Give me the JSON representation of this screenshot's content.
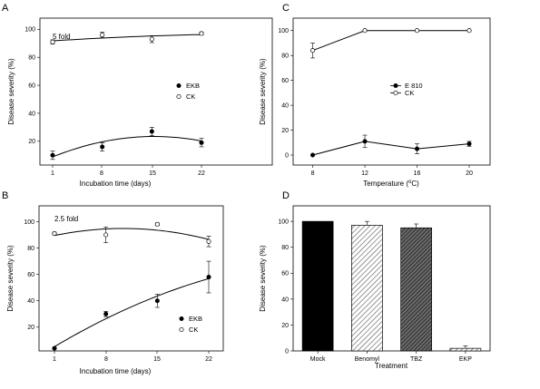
{
  "chart_data": [
    {
      "panel": "A",
      "type": "scatter",
      "annotation": "5 fold",
      "xlabel": "Incubation time (days)",
      "ylabel": "Disease severity (%)",
      "x": [
        1,
        8,
        15,
        22
      ],
      "xticks": [
        "1",
        "8",
        "15",
        "22"
      ],
      "yticks": [
        "20",
        "40",
        "60",
        "80",
        "100"
      ],
      "ylim": [
        3,
        108
      ],
      "grid": false,
      "legend_position": "center-right",
      "series": [
        {
          "name": "EKB",
          "marker": "filled-circle",
          "values": [
            10,
            16,
            27,
            19
          ],
          "errors": [
            3,
            3,
            3,
            3
          ],
          "fit": "quadratic"
        },
        {
          "name": "CK",
          "marker": "open-circle",
          "values": [
            91,
            96,
            93,
            97
          ],
          "errors": [
            1.5,
            2,
            2.5,
            1
          ],
          "fit": "quadratic"
        }
      ]
    },
    {
      "panel": "B",
      "type": "scatter",
      "annotation": "2.5 fold",
      "xlabel": "Incubation time (days)",
      "ylabel": "Disease severity (%)",
      "x": [
        1,
        8,
        15,
        22
      ],
      "xticks": [
        "1",
        "8",
        "15",
        "22"
      ],
      "yticks": [
        "20",
        "40",
        "60",
        "80",
        "100"
      ],
      "ylim": [
        2,
        112
      ],
      "grid": false,
      "legend_position": "bottom-right",
      "series": [
        {
          "name": "EKB",
          "marker": "filled-circle",
          "values": [
            4,
            30,
            40,
            58
          ],
          "errors": [
            0.5,
            2,
            5,
            12
          ],
          "fit": "quadratic"
        },
        {
          "name": "CK",
          "marker": "open-circle",
          "values": [
            91,
            90,
            98,
            85
          ],
          "errors": [
            1,
            6,
            1,
            4
          ],
          "fit": "quadratic"
        }
      ]
    },
    {
      "panel": "C",
      "type": "line",
      "xlabel": "Temperature (",
      "xlabel_super": "o",
      "xlabel_tail": "C)",
      "ylabel": "Disease severity (%)",
      "x": [
        8,
        12,
        16,
        20
      ],
      "xticks": [
        "8",
        "12",
        "16",
        "20"
      ],
      "yticks": [
        "0",
        "20",
        "40",
        "60",
        "80",
        "100"
      ],
      "xlim": [
        6.5,
        21.6
      ],
      "ylim": [
        -8,
        110
      ],
      "grid": false,
      "legend_position": "center-right",
      "series": [
        {
          "name": "E 810",
          "marker": "filled-circle",
          "values": [
            0,
            11,
            5,
            9
          ],
          "errors": [
            0,
            5,
            4,
            2
          ]
        },
        {
          "name": "CK",
          "marker": "open-circle",
          "values": [
            84,
            100,
            100,
            100
          ],
          "errors": [
            6,
            0,
            0,
            0
          ]
        }
      ]
    },
    {
      "panel": "D",
      "type": "bar",
      "xlabel": "Treatment",
      "ylabel": "Disease severity (%)",
      "categories": [
        "Mock",
        "Benomyl",
        "TBZ",
        "EKP"
      ],
      "values": [
        100,
        97,
        95,
        2
      ],
      "errors": [
        0,
        3,
        3,
        2
      ],
      "yticks": [
        "0",
        "20",
        "40",
        "60",
        "80",
        "100"
      ],
      "ylim": [
        0,
        112
      ],
      "fills": [
        "solid-black",
        "light-hatch",
        "dark-hatch",
        "light-hatch"
      ],
      "grid": false
    }
  ]
}
